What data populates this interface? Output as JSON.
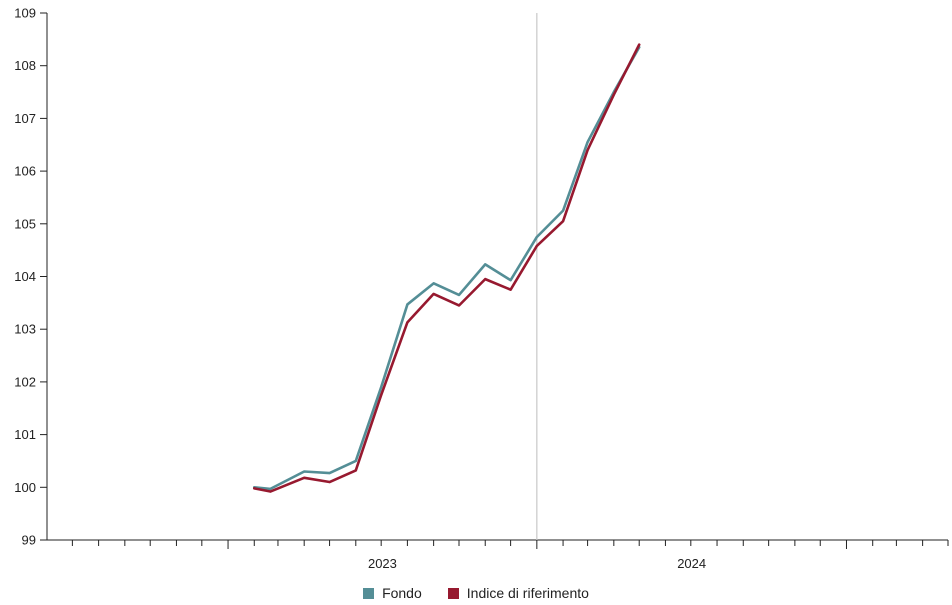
{
  "chart_data": {
    "type": "line",
    "title": "",
    "xlabel": "",
    "ylabel": "",
    "x_range": [
      "2022-06-01",
      "2025-05-01"
    ],
    "ylim": [
      99,
      109
    ],
    "yticks": [
      99,
      100,
      101,
      102,
      103,
      104,
      105,
      106,
      107,
      108,
      109
    ],
    "x_tick_labels": [
      {
        "label": "2023",
        "date": "2023-01-01"
      },
      {
        "label": "2024",
        "date": "2024-01-01"
      }
    ],
    "year_divider": "2024-01-01",
    "legend_position": "bottom",
    "grid": false,
    "series": [
      {
        "name": "Fondo",
        "color": "#548e96",
        "points": [
          {
            "x": "2023-02-01",
            "y": 100.0
          },
          {
            "x": "2023-02-20",
            "y": 99.97
          },
          {
            "x": "2023-04-01",
            "y": 100.3
          },
          {
            "x": "2023-05-01",
            "y": 100.27
          },
          {
            "x": "2023-06-01",
            "y": 100.5
          },
          {
            "x": "2023-07-01",
            "y": 101.9
          },
          {
            "x": "2023-08-01",
            "y": 103.47
          },
          {
            "x": "2023-09-01",
            "y": 103.87
          },
          {
            "x": "2023-10-01",
            "y": 103.65
          },
          {
            "x": "2023-11-01",
            "y": 104.23
          },
          {
            "x": "2023-12-01",
            "y": 103.93
          },
          {
            "x": "2024-01-01",
            "y": 104.75
          },
          {
            "x": "2024-02-01",
            "y": 105.25
          },
          {
            "x": "2024-03-01",
            "y": 106.55
          },
          {
            "x": "2024-04-01",
            "y": 107.5
          },
          {
            "x": "2024-05-01",
            "y": 108.35
          }
        ]
      },
      {
        "name": "Indice di riferimento",
        "color": "#97192f",
        "points": [
          {
            "x": "2023-02-01",
            "y": 99.98
          },
          {
            "x": "2023-02-20",
            "y": 99.92
          },
          {
            "x": "2023-04-01",
            "y": 100.18
          },
          {
            "x": "2023-05-01",
            "y": 100.1
          },
          {
            "x": "2023-06-01",
            "y": 100.32
          },
          {
            "x": "2023-07-01",
            "y": 101.75
          },
          {
            "x": "2023-08-01",
            "y": 103.13
          },
          {
            "x": "2023-09-01",
            "y": 103.67
          },
          {
            "x": "2023-10-01",
            "y": 103.45
          },
          {
            "x": "2023-11-01",
            "y": 103.95
          },
          {
            "x": "2023-12-01",
            "y": 103.75
          },
          {
            "x": "2024-01-01",
            "y": 104.58
          },
          {
            "x": "2024-02-01",
            "y": 105.05
          },
          {
            "x": "2024-03-01",
            "y": 106.4
          },
          {
            "x": "2024-04-01",
            "y": 107.45
          },
          {
            "x": "2024-05-01",
            "y": 108.4
          }
        ]
      }
    ]
  }
}
